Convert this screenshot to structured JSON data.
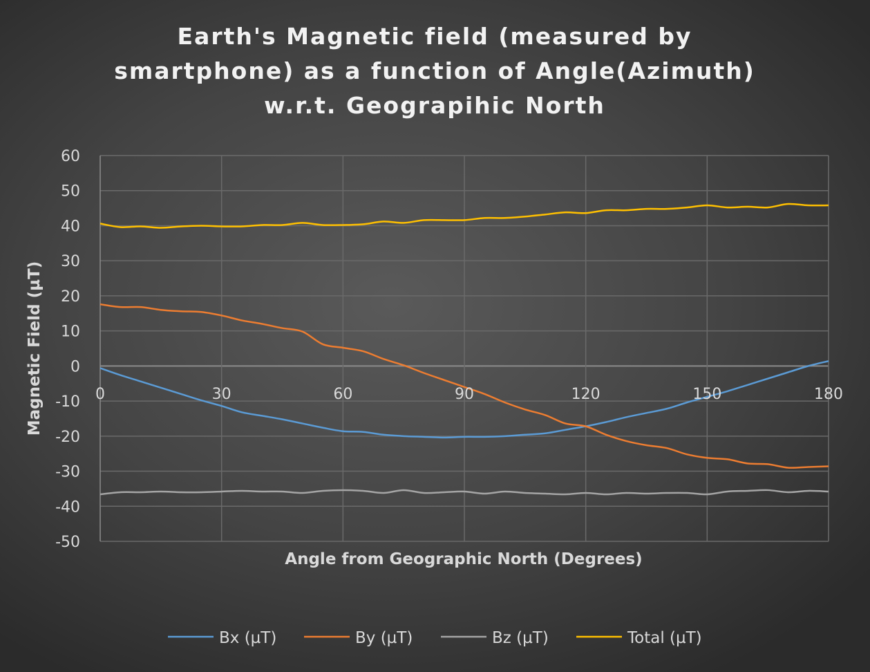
{
  "chart_data": {
    "type": "line",
    "title_lines": [
      "Earth's Magnetic field (measured by",
      "smartphone) as a function of Angle(Azimuth)",
      "w.r.t. Geograpihic North"
    ],
    "xlabel": "Angle from Geographic North (Degrees)",
    "ylabel": "Magnetic Field (µT)",
    "xlim": [
      0,
      180
    ],
    "ylim": [
      -50,
      60
    ],
    "x_ticks": [
      "0",
      "30",
      "60",
      "90",
      "120",
      "150",
      "180"
    ],
    "y_ticks": [
      "60",
      "50",
      "40",
      "30",
      "20",
      "10",
      "0",
      "-10",
      "-20",
      "-30",
      "-40",
      "-50"
    ],
    "grid": true,
    "smooth": true,
    "legend_position": "bottom",
    "x": [
      0,
      5,
      10,
      15,
      20,
      25,
      30,
      35,
      40,
      45,
      50,
      55,
      60,
      65,
      70,
      75,
      80,
      85,
      90,
      95,
      100,
      105,
      110,
      115,
      120,
      125,
      130,
      135,
      140,
      145,
      150,
      155,
      160,
      165,
      170,
      175,
      180
    ],
    "series": [
      {
        "name": "Bx (µT)",
        "color": "#5b9bd5",
        "values": [
          -0.6,
          -2.6,
          -4.4,
          -6.2,
          -8,
          -9.8,
          -11.4,
          -13.2,
          -14.2,
          -15.2,
          -16.4,
          -17.6,
          -18.6,
          -18.8,
          -19.6,
          -20,
          -20.2,
          -20.4,
          -20.2,
          -20.2,
          -20,
          -19.6,
          -19.2,
          -18.2,
          -17.2,
          -16,
          -14.6,
          -13.4,
          -12.2,
          -10.4,
          -8.8,
          -7.2,
          -5.4,
          -3.6,
          -1.8,
          0,
          1.4
        ]
      },
      {
        "name": "By (µT)",
        "color": "#ed7d31",
        "values": [
          17.6,
          16.8,
          16.8,
          16,
          15.6,
          15.4,
          14.4,
          13,
          12,
          10.8,
          9.8,
          6.2,
          5.2,
          4.2,
          2,
          0.2,
          -2,
          -4,
          -6,
          -8,
          -10.4,
          -12.4,
          -14,
          -16.4,
          -17.2,
          -19.6,
          -21.4,
          -22.6,
          -23.4,
          -25.2,
          -26.2,
          -26.6,
          -27.8,
          -28,
          -29,
          -28.8,
          -28.6
        ]
      },
      {
        "name": "Bz (µT)",
        "color": "#a5a5a5",
        "values": [
          -36.6,
          -36,
          -36,
          -35.8,
          -36,
          -36,
          -35.8,
          -35.6,
          -35.8,
          -35.8,
          -36.2,
          -35.6,
          -35.4,
          -35.6,
          -36.2,
          -35.4,
          -36.2,
          -36,
          -35.8,
          -36.4,
          -35.8,
          -36.2,
          -36.4,
          -36.6,
          -36.2,
          -36.6,
          -36.2,
          -36.4,
          -36.2,
          -36.2,
          -36.6,
          -35.8,
          -35.6,
          -35.4,
          -36,
          -35.6,
          -35.8
        ]
      },
      {
        "name": "Total (µT)",
        "color": "#ffc000",
        "values": [
          40.6,
          39.6,
          39.8,
          39.4,
          39.8,
          40,
          39.8,
          39.8,
          40.2,
          40.2,
          40.8,
          40.2,
          40.2,
          40.4,
          41.2,
          40.8,
          41.6,
          41.6,
          41.6,
          42.2,
          42.2,
          42.6,
          43.2,
          43.8,
          43.6,
          44.4,
          44.4,
          44.8,
          44.8,
          45.2,
          45.8,
          45.2,
          45.4,
          45.2,
          46.2,
          45.8,
          45.8
        ]
      }
    ]
  }
}
